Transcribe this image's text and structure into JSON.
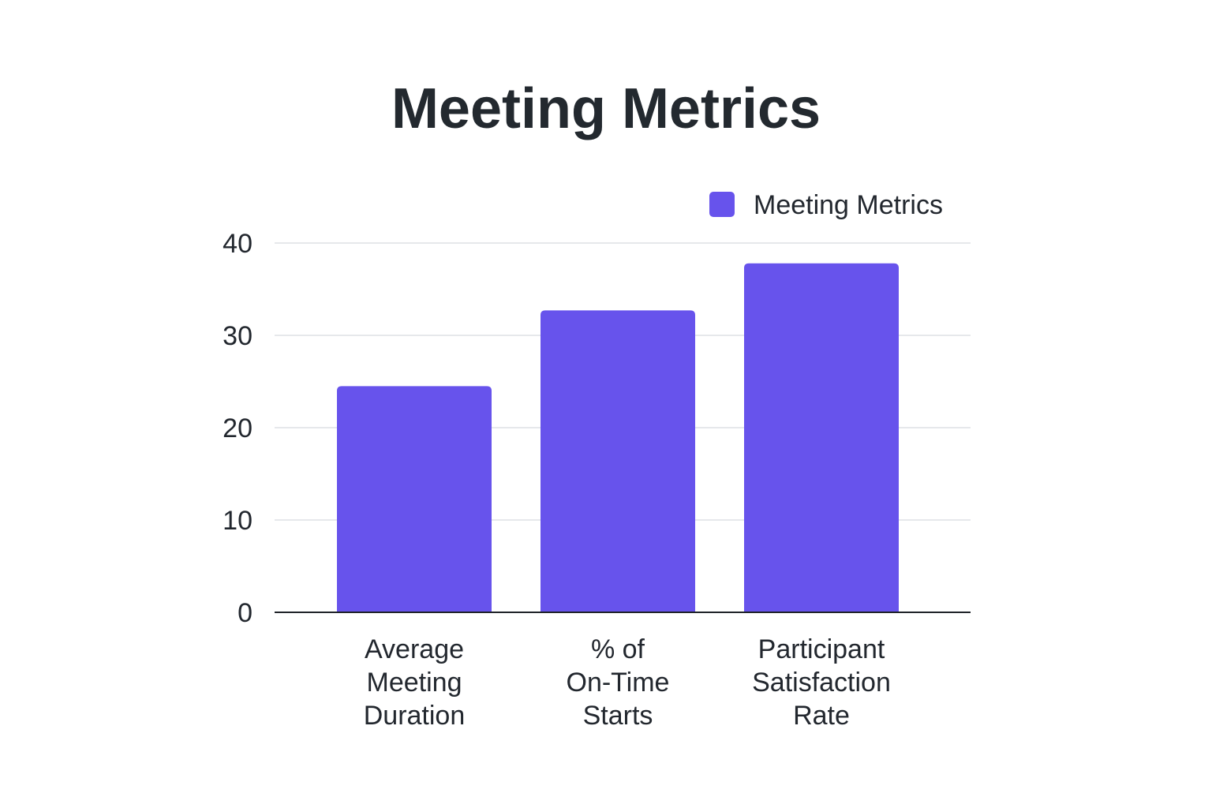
{
  "chart_data": {
    "type": "bar",
    "title": "Meeting Metrics",
    "categories": [
      [
        "Average",
        "Meeting",
        "Duration"
      ],
      [
        "% of",
        "On-Time",
        "Starts"
      ],
      [
        "Participant",
        "Satisfaction",
        "Rate"
      ]
    ],
    "series": [
      {
        "name": "Meeting Metrics",
        "values": [
          24.5,
          32.7,
          37.8
        ],
        "color": "#6753ec"
      }
    ],
    "yticks": [
      0,
      10,
      20,
      30,
      40
    ],
    "ylim": [
      0,
      40
    ],
    "grid": true,
    "legend_position": "top-right",
    "xlabel": "",
    "ylabel": ""
  }
}
